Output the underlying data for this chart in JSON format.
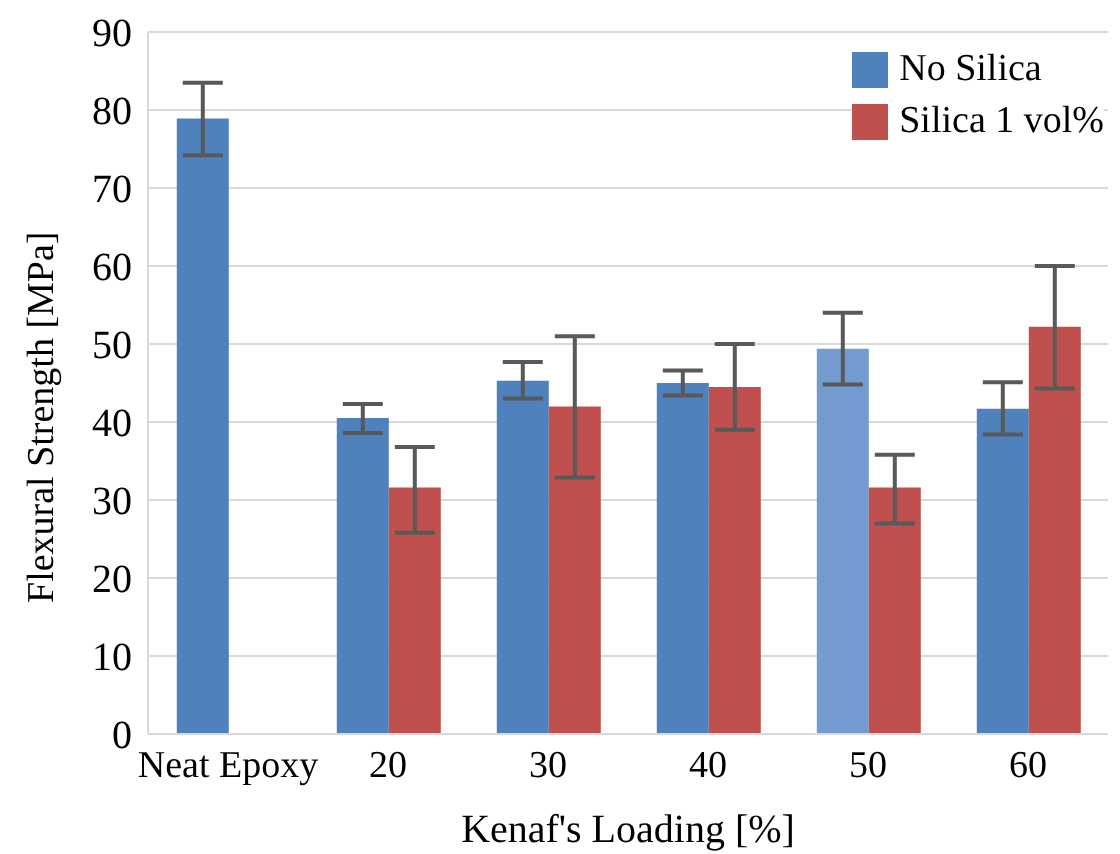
{
  "chart_data": {
    "type": "bar",
    "xlabel": "Kenaf's Loading [%]",
    "ylabel": "Flexural Strength [MPa]",
    "categories": [
      "Neat Epoxy",
      "20",
      "30",
      "40",
      "50",
      "60"
    ],
    "series": [
      {
        "name": "No Silica",
        "color": "#4f81bd",
        "colors": [
          "#4f81bd",
          "#4f81bd",
          "#4f81bd",
          "#4f81bd",
          "#739bcf",
          "#4f81bd"
        ],
        "values": [
          78.9,
          40.5,
          45.3,
          45,
          49.4,
          41.7
        ],
        "errors": [
          [
            74.2,
            83.5
          ],
          [
            38.6,
            42.3
          ],
          [
            43,
            47.7
          ],
          [
            43.4,
            46.6
          ],
          [
            44.8,
            54
          ],
          [
            38.4,
            45.1
          ]
        ]
      },
      {
        "name": "Silica 1 vol%",
        "color": "#c0504d",
        "values": [
          null,
          31.6,
          42,
          44.5,
          31.6,
          52.2
        ],
        "errors": [
          null,
          [
            25.8,
            36.8
          ],
          [
            32.9,
            51
          ],
          [
            39,
            50
          ],
          [
            27,
            35.8
          ],
          [
            44.3,
            60
          ]
        ]
      }
    ],
    "ylim": [
      0,
      90
    ],
    "yticks": [
      0,
      10,
      20,
      30,
      40,
      50,
      60,
      70,
      80,
      90
    ],
    "grid": "y",
    "legend": "top right"
  }
}
